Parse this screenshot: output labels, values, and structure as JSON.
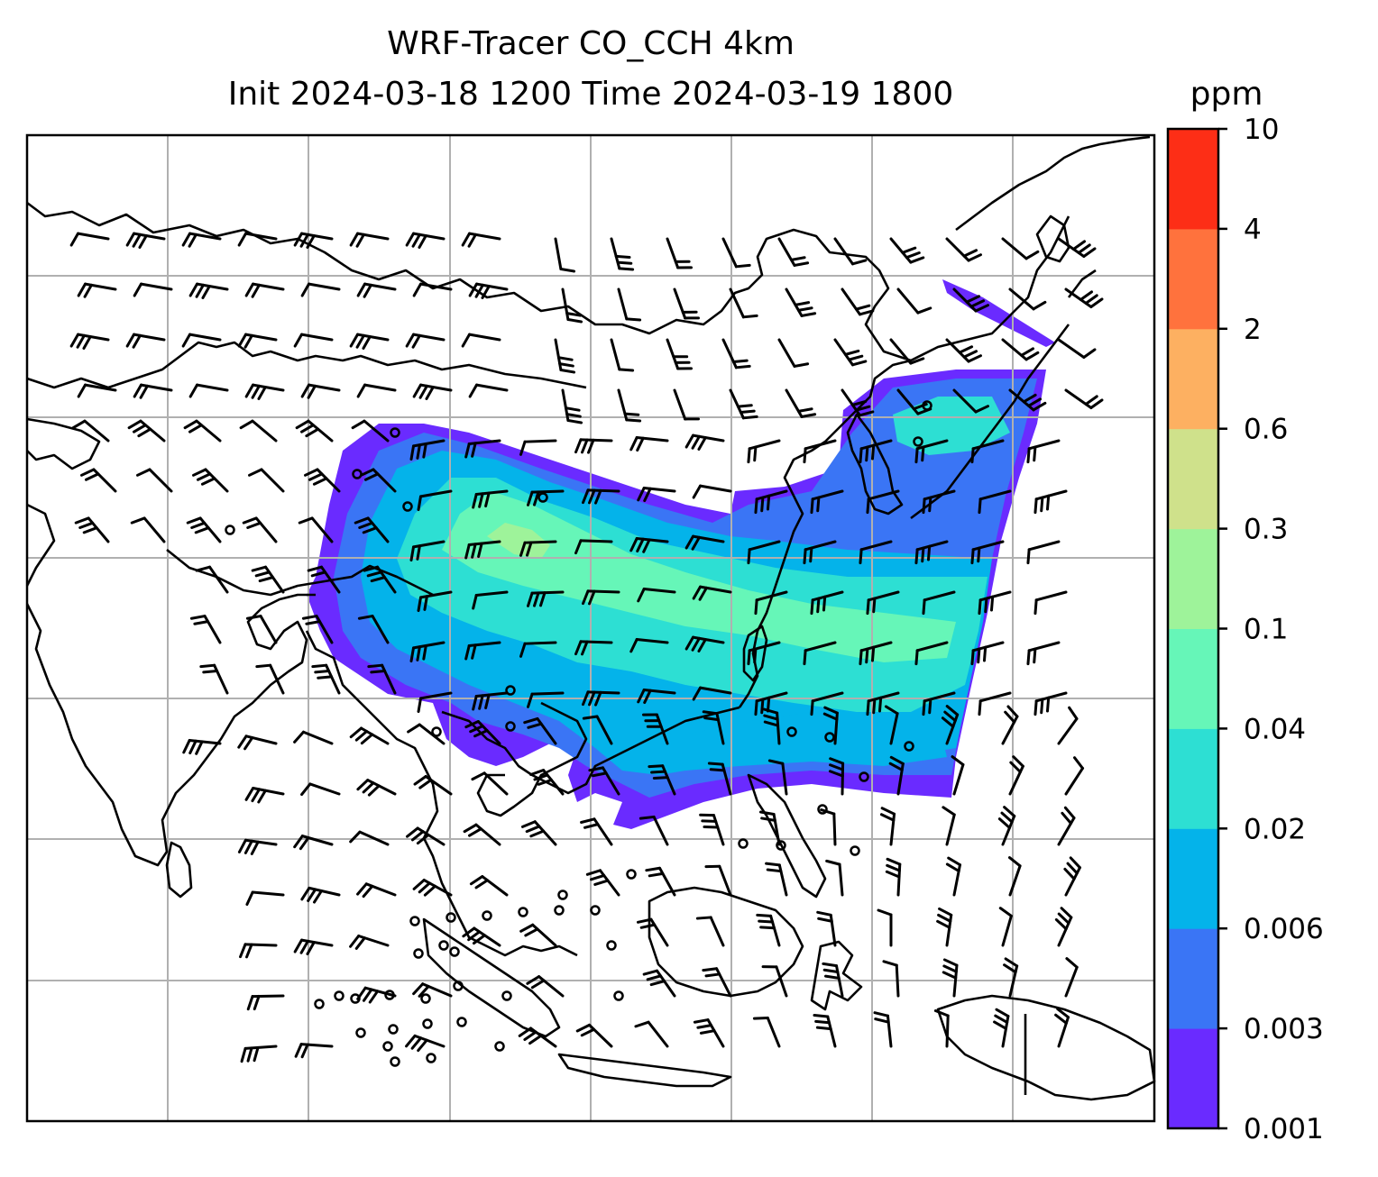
{
  "title_line1": "WRF-Tracer CO_CCH 4km",
  "title_line2": "Init 2024-03-18 1200 Time 2024-03-19 1800",
  "colorbar": {
    "unit": "ppm",
    "ticks": [
      "0.001",
      "0.003",
      "0.006",
      "0.02",
      "0.04",
      "0.1",
      "0.3",
      "0.6",
      "2",
      "4",
      "10"
    ],
    "colors": [
      "#6a2bff",
      "#3a75f5",
      "#04b3ea",
      "#2ddfd3",
      "#66f6b8",
      "#9ef39a",
      "#cfe18b",
      "#fdb061",
      "#ff723d",
      "#fd2e16"
    ]
  },
  "map": {
    "gridlines": true,
    "grid_color": "#b0b0b0",
    "coastline_color": "#000000"
  }
}
